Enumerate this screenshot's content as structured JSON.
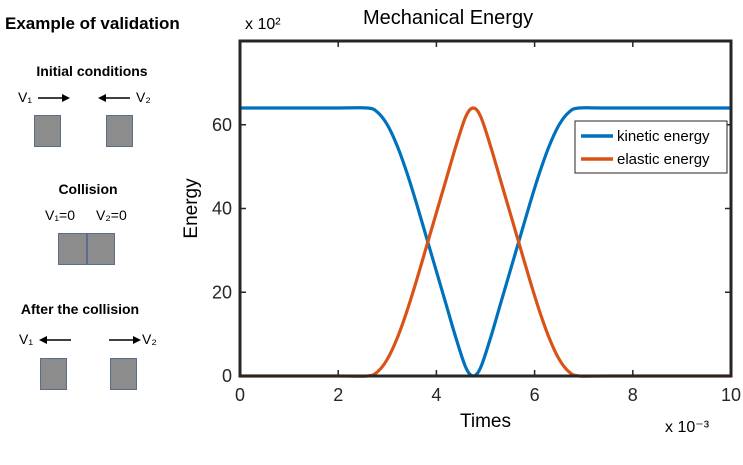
{
  "left_panel": {
    "title": "Example of validation",
    "initial": {
      "heading": "Initial conditions",
      "v1": "V₁",
      "v2": "V₂"
    },
    "collision": {
      "heading": "Collision",
      "v1": "V₁=0",
      "v2": "V₂=0"
    },
    "after": {
      "heading": "After the collision",
      "v1": "V₁",
      "v2": "V₂"
    }
  },
  "chart_exponents": {
    "y": "x 10²",
    "x": "x 10⁻³"
  },
  "chart_data": {
    "type": "line",
    "title": "Mechanical Energy",
    "xlabel": "Times",
    "ylabel": "Energy",
    "xlim": [
      0,
      10
    ],
    "ylim": [
      0,
      80
    ],
    "xticks": [
      0,
      2,
      4,
      6,
      8,
      10
    ],
    "yticks": [
      0,
      20,
      40,
      60
    ],
    "grid": false,
    "legend_position": "top-right",
    "series": [
      {
        "name": "kinetic energy",
        "color": "#0072BD",
        "x": [
          0,
          2.0,
          2.6,
          2.8,
          3.0,
          3.2,
          3.4,
          3.6,
          3.8,
          4.0,
          4.2,
          4.4,
          4.6,
          4.75,
          4.9,
          5.1,
          5.3,
          5.5,
          5.7,
          5.9,
          6.1,
          6.3,
          6.5,
          6.7,
          6.9,
          7.5,
          10
        ],
        "y": [
          64,
          64,
          64,
          63,
          60,
          55,
          48.5,
          41,
          33,
          25,
          17,
          9,
          2,
          0,
          2,
          9,
          17,
          25,
          33,
          41,
          48.5,
          55,
          60,
          63,
          64,
          64,
          64
        ]
      },
      {
        "name": "elastic energy",
        "color": "#D95319",
        "x": [
          0,
          2.0,
          2.6,
          2.8,
          3.0,
          3.2,
          3.4,
          3.6,
          3.8,
          4.0,
          4.2,
          4.4,
          4.6,
          4.75,
          4.9,
          5.1,
          5.3,
          5.5,
          5.7,
          5.9,
          6.1,
          6.3,
          6.5,
          6.7,
          6.9,
          7.5,
          10
        ],
        "y": [
          0,
          0,
          0,
          1,
          4,
          9,
          15.5,
          23,
          31,
          39,
          47,
          55,
          62,
          64,
          62,
          55,
          47,
          39,
          31,
          23,
          15.5,
          9,
          4,
          1,
          0,
          0,
          0
        ]
      }
    ]
  }
}
